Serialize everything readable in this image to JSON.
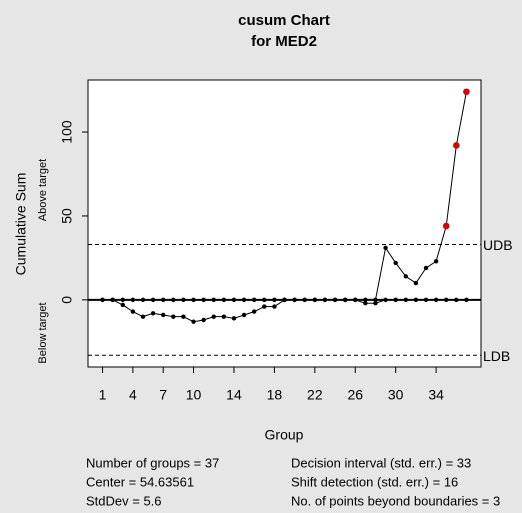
{
  "chart_data": {
    "type": "cusum",
    "title": "cusum Chart",
    "subtitle": "for MED2",
    "x_label": "Group",
    "y_label": "Cumulative Sum",
    "x": [
      1,
      2,
      3,
      4,
      5,
      6,
      7,
      8,
      9,
      10,
      11,
      12,
      13,
      14,
      15,
      16,
      17,
      18,
      19,
      20,
      21,
      22,
      23,
      24,
      25,
      26,
      27,
      28,
      29,
      30,
      31,
      32,
      33,
      34,
      35,
      36,
      37
    ],
    "series": [
      {
        "name": "Above target",
        "color": "#000000",
        "values": [
          0,
          0,
          0,
          0,
          0,
          0,
          0,
          0,
          0,
          0,
          0,
          0,
          0,
          0,
          0,
          0,
          0,
          0,
          0,
          0,
          0,
          0,
          0,
          0,
          0,
          0,
          0,
          0,
          31,
          22,
          14,
          10,
          19,
          23,
          44,
          92,
          124
        ]
      },
      {
        "name": "Below target",
        "color": "#000000",
        "values": [
          0,
          0,
          -3,
          -7,
          -10,
          -8,
          -9,
          -10,
          -10,
          -13,
          -12,
          -10,
          -10,
          -11,
          -9,
          -7,
          -4,
          -4,
          0,
          0,
          0,
          0,
          0,
          0,
          0,
          0,
          -2,
          -2,
          0,
          0,
          0,
          0,
          0,
          0,
          0,
          0,
          0
        ]
      }
    ],
    "beyond_color": "#dd0000",
    "center_line": 0,
    "boundaries": [
      {
        "label": "UDB",
        "value": 33
      },
      {
        "label": "LDB",
        "value": -33
      }
    ],
    "xlim": [
      -0.44,
      38.44
    ],
    "ylim": [
      -40,
      131
    ],
    "xticks": [
      1,
      4,
      7,
      10,
      14,
      18,
      22,
      26,
      30,
      34
    ],
    "yticks": [
      0,
      50,
      100
    ],
    "stats": [
      [
        "Number of groups = 37",
        "Center = 54.63561",
        "StdDev = 5.6"
      ],
      [
        "Decision interval (std. err.) = 33",
        "Shift detection (std. err.) = 16",
        "No. of points beyond boundaries = 3"
      ]
    ]
  }
}
